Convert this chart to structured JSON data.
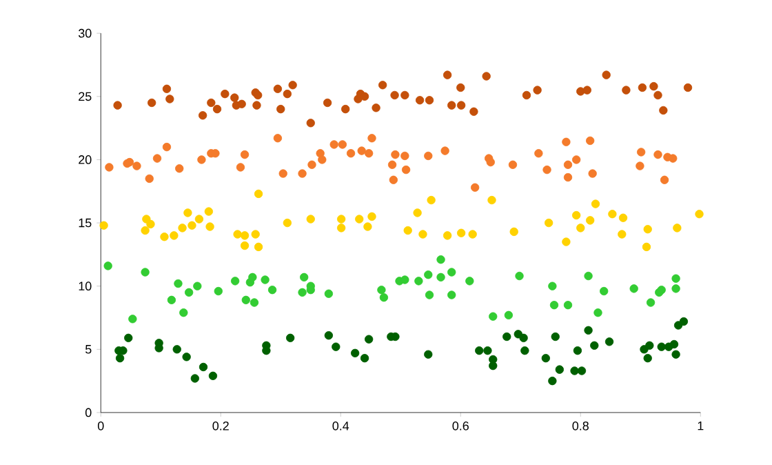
{
  "chart_data": {
    "type": "scatter",
    "marker": "circle",
    "xlim": [
      0,
      1
    ],
    "ylim": [
      0,
      30
    ],
    "xticks": [
      0,
      0.2,
      0.4,
      0.6,
      0.8,
      1
    ],
    "yticks": [
      0,
      5,
      10,
      15,
      20,
      25,
      30
    ],
    "series": [
      {
        "color": "#c4500a",
        "x": [
          0.028,
          0.085,
          0.11,
          0.115,
          0.17,
          0.184,
          0.194,
          0.207,
          0.223,
          0.226,
          0.235,
          0.258,
          0.262,
          0.26,
          0.295,
          0.3,
          0.311,
          0.32,
          0.35,
          0.378,
          0.408,
          0.429,
          0.433,
          0.44,
          0.459,
          0.47,
          0.49,
          0.507,
          0.532,
          0.548,
          0.578,
          0.6,
          0.585,
          0.601,
          0.622,
          0.643,
          0.71,
          0.728,
          0.8,
          0.811,
          0.843,
          0.876,
          0.903,
          0.922,
          0.929,
          0.938,
          0.979
        ],
        "values": [
          24.3,
          24.5,
          25.6,
          24.8,
          23.5,
          24.5,
          24.0,
          25.2,
          24.9,
          24.3,
          24.4,
          25.3,
          25.1,
          24.3,
          25.6,
          24.0,
          25.2,
          25.9,
          22.9,
          24.5,
          24.0,
          24.8,
          25.2,
          25.0,
          24.1,
          25.9,
          25.1,
          25.1,
          24.7,
          24.7,
          26.7,
          25.7,
          24.3,
          24.3,
          23.8,
          26.6,
          25.1,
          25.5,
          25.4,
          25.5,
          26.7,
          25.5,
          25.7,
          25.8,
          25.1,
          23.9,
          25.7
        ]
      },
      {
        "color": "#f47b2b",
        "x": [
          0.014,
          0.044,
          0.048,
          0.06,
          0.081,
          0.094,
          0.11,
          0.131,
          0.168,
          0.184,
          0.191,
          0.233,
          0.24,
          0.295,
          0.304,
          0.336,
          0.352,
          0.366,
          0.369,
          0.389,
          0.403,
          0.417,
          0.435,
          0.447,
          0.452,
          0.486,
          0.488,
          0.491,
          0.507,
          0.509,
          0.546,
          0.574,
          0.624,
          0.647,
          0.65,
          0.687,
          0.73,
          0.744,
          0.776,
          0.779,
          0.793,
          0.779,
          0.816,
          0.82,
          0.901,
          0.899,
          0.929,
          0.945,
          0.954,
          0.94
        ],
        "values": [
          19.4,
          19.7,
          19.8,
          19.5,
          18.5,
          20.1,
          21.0,
          19.3,
          20.0,
          20.5,
          20.5,
          19.4,
          20.4,
          21.7,
          18.9,
          18.9,
          19.6,
          20.5,
          20.0,
          21.2,
          21.2,
          20.5,
          20.7,
          20.5,
          21.7,
          19.6,
          18.4,
          20.4,
          20.3,
          19.2,
          20.3,
          20.7,
          17.8,
          20.1,
          19.8,
          19.6,
          20.5,
          19.2,
          21.4,
          19.6,
          20.0,
          18.6,
          21.5,
          18.9,
          20.6,
          19.5,
          20.4,
          20.2,
          20.1,
          18.4
        ]
      },
      {
        "color": "#ffd200",
        "x": [
          0.005,
          0.076,
          0.083,
          0.074,
          0.106,
          0.122,
          0.136,
          0.145,
          0.152,
          0.164,
          0.18,
          0.182,
          0.228,
          0.24,
          0.24,
          0.258,
          0.263,
          0.263,
          0.311,
          0.35,
          0.401,
          0.401,
          0.431,
          0.445,
          0.452,
          0.528,
          0.512,
          0.537,
          0.578,
          0.601,
          0.62,
          0.551,
          0.652,
          0.689,
          0.747,
          0.776,
          0.793,
          0.8,
          0.816,
          0.825,
          0.853,
          0.871,
          0.869,
          0.912,
          0.91,
          0.961,
          0.998
        ],
        "values": [
          14.8,
          15.3,
          14.9,
          14.4,
          13.9,
          14.0,
          14.6,
          15.8,
          14.8,
          15.3,
          15.9,
          14.7,
          14.1,
          14.0,
          13.2,
          14.1,
          13.1,
          17.3,
          15.0,
          15.3,
          15.3,
          14.6,
          15.3,
          14.7,
          15.5,
          15.8,
          14.4,
          14.1,
          14.0,
          14.2,
          14.1,
          16.8,
          16.8,
          14.3,
          15.0,
          13.5,
          15.6,
          14.6,
          15.2,
          16.5,
          15.7,
          15.4,
          14.1,
          14.5,
          13.1,
          14.6,
          15.7
        ]
      },
      {
        "color": "#33cc33",
        "x": [
          0.012,
          0.074,
          0.053,
          0.118,
          0.129,
          0.138,
          0.147,
          0.161,
          0.196,
          0.224,
          0.242,
          0.249,
          0.253,
          0.256,
          0.274,
          0.286,
          0.339,
          0.336,
          0.35,
          0.35,
          0.38,
          0.468,
          0.472,
          0.498,
          0.507,
          0.53,
          0.548,
          0.546,
          0.567,
          0.567,
          0.585,
          0.585,
          0.615,
          0.654,
          0.68,
          0.698,
          0.753,
          0.756,
          0.779,
          0.813,
          0.839,
          0.829,
          0.889,
          0.917,
          0.931,
          0.935,
          0.959,
          0.959
        ],
        "values": [
          11.6,
          11.1,
          7.4,
          8.9,
          10.2,
          7.9,
          9.5,
          10.0,
          9.6,
          10.4,
          8.9,
          10.3,
          10.7,
          8.7,
          10.5,
          9.7,
          10.7,
          9.5,
          10.0,
          9.7,
          9.4,
          9.7,
          9.1,
          10.4,
          10.5,
          10.4,
          9.3,
          10.9,
          12.1,
          10.7,
          11.1,
          9.3,
          10.4,
          7.6,
          7.7,
          10.8,
          10.0,
          8.5,
          8.5,
          10.8,
          9.6,
          7.9,
          9.8,
          8.7,
          9.5,
          9.7,
          10.6,
          9.8
        ]
      },
      {
        "color": "#006000",
        "x": [
          0.03,
          0.037,
          0.032,
          0.046,
          0.097,
          0.097,
          0.127,
          0.143,
          0.171,
          0.157,
          0.187,
          0.276,
          0.276,
          0.316,
          0.38,
          0.392,
          0.424,
          0.44,
          0.447,
          0.484,
          0.491,
          0.546,
          0.631,
          0.645,
          0.654,
          0.654,
          0.677,
          0.696,
          0.705,
          0.707,
          0.742,
          0.753,
          0.758,
          0.765,
          0.79,
          0.802,
          0.795,
          0.813,
          0.823,
          0.848,
          0.906,
          0.912,
          0.915,
          0.935,
          0.947,
          0.956,
          0.959,
          0.963,
          0.972
        ],
        "values": [
          4.9,
          4.9,
          4.3,
          5.9,
          5.5,
          5.1,
          5.0,
          4.4,
          3.6,
          2.7,
          2.9,
          5.3,
          4.9,
          5.9,
          6.1,
          5.2,
          4.7,
          4.3,
          5.8,
          6.0,
          6.0,
          4.6,
          4.9,
          4.9,
          4.2,
          3.7,
          6.0,
          6.2,
          5.9,
          4.9,
          4.3,
          2.5,
          6.0,
          3.4,
          3.3,
          3.3,
          4.9,
          6.5,
          5.3,
          5.6,
          5.0,
          4.3,
          5.3,
          5.2,
          5.2,
          5.4,
          4.6,
          6.9,
          7.2
        ]
      }
    ]
  }
}
